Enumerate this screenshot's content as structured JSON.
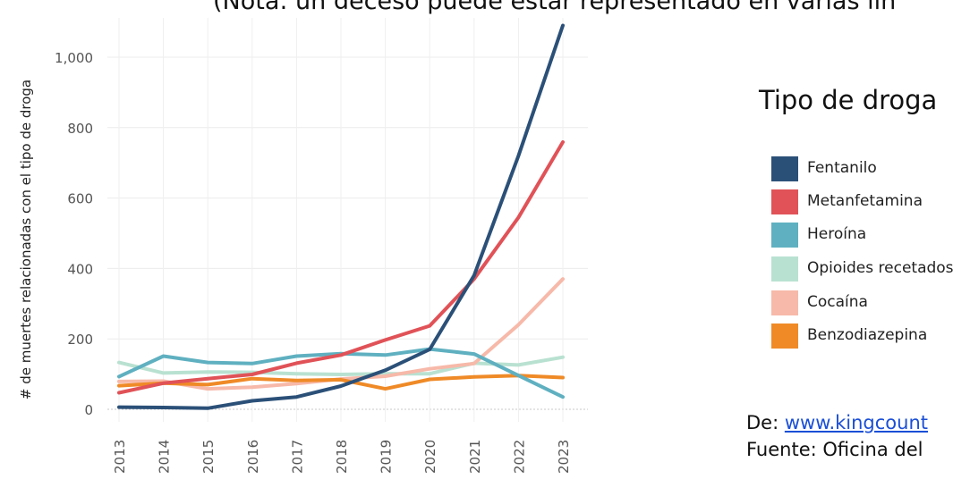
{
  "note": "(Nota: un deceso puede estar representado en varias lín",
  "chart_data": {
    "type": "line",
    "ylabel": "# de muertes relacionadas con el tipo de droga",
    "xlabel": "",
    "x": [
      "2013",
      "2014",
      "2015",
      "2016",
      "2017",
      "2018",
      "2019",
      "2020",
      "2021",
      "2022",
      "2023"
    ],
    "ylim": [
      0,
      1100
    ],
    "yticks": [
      0,
      200,
      400,
      600,
      800,
      1000
    ],
    "ytick_labels": [
      "0",
      "200",
      "400",
      "600",
      "800",
      "1,000"
    ],
    "grid": true,
    "legend_placement": "right",
    "legend_title": "Tipo de droga",
    "series": [
      {
        "name": "Fentanilo",
        "color": "#2b5078",
        "values": [
          6,
          5,
          3,
          24,
          35,
          66,
          111,
          170,
          380,
          720,
          1090
        ]
      },
      {
        "name": "Metanfetamina",
        "color": "#e05257",
        "values": [
          47,
          74,
          87,
          99,
          131,
          154,
          197,
          237,
          370,
          545,
          759
        ]
      },
      {
        "name": "Heroína",
        "color": "#5fb0c0",
        "values": [
          93,
          151,
          133,
          130,
          151,
          158,
          154,
          171,
          157,
          96,
          35
        ]
      },
      {
        "name": "Opioides recetados",
        "color": "#b9e1d1",
        "values": [
          133,
          103,
          106,
          105,
          101,
          99,
          101,
          101,
          131,
          126,
          148
        ]
      },
      {
        "name": "Cocaína",
        "color": "#f7b9a9",
        "values": [
          79,
          80,
          58,
          63,
          73,
          86,
          94,
          115,
          130,
          240,
          370
        ]
      },
      {
        "name": "Benzodiazepina",
        "color": "#ef8a27",
        "values": [
          67,
          74,
          70,
          87,
          82,
          84,
          58,
          85,
          92,
          96,
          90
        ]
      }
    ]
  },
  "source": {
    "from_label": "De: ",
    "link_text": "www.kingcount",
    "source_text": "Fuente: Oficina del"
  }
}
